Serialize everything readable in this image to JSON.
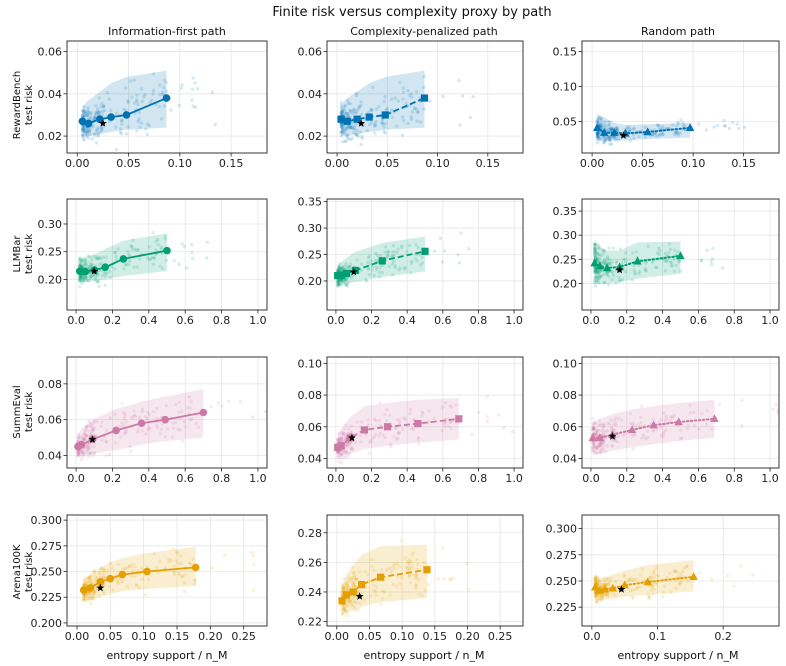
{
  "figure": {
    "title": "Finite risk versus complexity proxy by path",
    "column_titles": [
      "Information-first path",
      "Complexity-penalized path",
      "Random path"
    ],
    "row_labels": [
      [
        "RewardBench",
        "test risk"
      ],
      [
        "LLMBar",
        "test risk"
      ],
      [
        "SummEval",
        "test risk"
      ],
      [
        "Arena100K",
        "test risk"
      ]
    ],
    "xlabel": "entropy support / n_M"
  },
  "colors": {
    "RewardBench": "#0072b2",
    "LLMBar": "#009e73",
    "SummEval": "#cc79a7",
    "Arena100K": "#e69f00"
  },
  "chart_data": [
    {
      "type": "line",
      "dataset": "RewardBench",
      "path": "Information-first path",
      "marker": "circle",
      "linestyle": "solid",
      "xlim": [
        -0.01,
        0.185
      ],
      "ylim": [
        0.012,
        0.065
      ],
      "xticks": [
        0,
        0.05,
        0.1,
        0.15
      ],
      "xticklabels": [
        "0.00",
        "0.05",
        "0.10",
        "0.15"
      ],
      "yticks": [
        0.02,
        0.04,
        0.06
      ],
      "yticklabels": [
        "0.02",
        "0.04",
        "0.06"
      ],
      "x": [
        0.005,
        0.011,
        0.022,
        0.033,
        0.048,
        0.087
      ],
      "y": [
        0.027,
        0.026,
        0.028,
        0.029,
        0.03,
        0.038
      ],
      "band_lower": [
        0.02,
        0.02,
        0.021,
        0.022,
        0.023,
        0.024
      ],
      "band_upper": [
        0.034,
        0.037,
        0.041,
        0.045,
        0.048,
        0.051
      ],
      "star": [
        0.025,
        0.026
      ]
    },
    {
      "type": "line",
      "dataset": "RewardBench",
      "path": "Complexity-penalized path",
      "marker": "square",
      "linestyle": "dashed",
      "xlim": [
        -0.01,
        0.185
      ],
      "ylim": [
        0.012,
        0.065
      ],
      "xticks": [
        0,
        0.05,
        0.1,
        0.15
      ],
      "xticklabels": [
        "0.00",
        "0.05",
        "0.10",
        "0.15"
      ],
      "yticks": [
        0.02,
        0.04,
        0.06
      ],
      "yticklabels": [
        "0.02",
        "0.04",
        "0.06"
      ],
      "x": [
        0.004,
        0.01,
        0.02,
        0.032,
        0.048,
        0.087
      ],
      "y": [
        0.028,
        0.027,
        0.028,
        0.029,
        0.03,
        0.038
      ],
      "band_lower": [
        0.02,
        0.02,
        0.021,
        0.022,
        0.023,
        0.024
      ],
      "band_upper": [
        0.035,
        0.038,
        0.041,
        0.045,
        0.048,
        0.051
      ],
      "star": [
        0.024,
        0.026
      ]
    },
    {
      "type": "line",
      "dataset": "RewardBench",
      "path": "Random path",
      "marker": "triangle",
      "linestyle": "dotted",
      "xlim": [
        -0.01,
        0.185
      ],
      "ylim": [
        0.005,
        0.165
      ],
      "xticks": [
        0,
        0.05,
        0.1,
        0.15
      ],
      "xticklabels": [
        "0.00",
        "0.05",
        "0.10",
        "0.15"
      ],
      "yticks": [
        0.05,
        0.1,
        0.15
      ],
      "yticklabels": [
        "0.05",
        "0.10",
        "0.15"
      ],
      "x": [
        0.005,
        0.012,
        0.022,
        0.033,
        0.055,
        0.097
      ],
      "y": [
        0.041,
        0.034,
        0.034,
        0.033,
        0.035,
        0.041
      ],
      "band_lower": [
        0.022,
        0.022,
        0.023,
        0.023,
        0.025,
        0.027
      ],
      "band_upper": [
        0.06,
        0.056,
        0.048,
        0.045,
        0.046,
        0.048
      ],
      "star": [
        0.031,
        0.03
      ]
    },
    {
      "type": "line",
      "dataset": "LLMBar",
      "path": "Information-first path",
      "marker": "circle",
      "linestyle": "solid",
      "xlim": [
        -0.05,
        1.05
      ],
      "ylim": [
        0.145,
        0.345
      ],
      "xticks": [
        0,
        0.2,
        0.4,
        0.6,
        0.8,
        1
      ],
      "xticklabels": [
        "0.0",
        "0.2",
        "0.4",
        "0.6",
        "0.8",
        "1.0"
      ],
      "yticks": [
        0.2,
        0.25,
        0.3
      ],
      "yticklabels": [
        "0.20",
        "0.25",
        "0.30"
      ],
      "x": [
        0.02,
        0.05,
        0.1,
        0.16,
        0.26,
        0.5
      ],
      "y": [
        0.215,
        0.214,
        0.217,
        0.222,
        0.237,
        0.252
      ],
      "band_lower": [
        0.195,
        0.195,
        0.197,
        0.2,
        0.206,
        0.215
      ],
      "band_upper": [
        0.238,
        0.241,
        0.245,
        0.255,
        0.27,
        0.283
      ],
      "star": [
        0.1,
        0.215
      ]
    },
    {
      "type": "line",
      "dataset": "LLMBar",
      "path": "Complexity-penalized path",
      "marker": "square",
      "linestyle": "dashed",
      "xlim": [
        -0.05,
        1.05
      ],
      "ylim": [
        0.145,
        0.355
      ],
      "xticks": [
        0,
        0.2,
        0.4,
        0.6,
        0.8,
        1
      ],
      "xticklabels": [
        "0.0",
        "0.2",
        "0.4",
        "0.6",
        "0.8",
        "1.0"
      ],
      "yticks": [
        0.2,
        0.25,
        0.3,
        0.35
      ],
      "yticklabels": [
        "0.20",
        "0.25",
        "0.30",
        "0.35"
      ],
      "x": [
        0.01,
        0.03,
        0.06,
        0.11,
        0.26,
        0.5
      ],
      "y": [
        0.21,
        0.21,
        0.214,
        0.22,
        0.238,
        0.256
      ],
      "band_lower": [
        0.193,
        0.193,
        0.195,
        0.198,
        0.207,
        0.218
      ],
      "band_upper": [
        0.23,
        0.236,
        0.244,
        0.255,
        0.272,
        0.284
      ],
      "star": [
        0.1,
        0.217
      ]
    },
    {
      "type": "line",
      "dataset": "LLMBar",
      "path": "Random path",
      "marker": "triangle",
      "linestyle": "dotted",
      "xlim": [
        -0.05,
        1.05
      ],
      "ylim": [
        0.145,
        0.375
      ],
      "xticks": [
        0,
        0.2,
        0.4,
        0.6,
        0.8,
        1
      ],
      "xticklabels": [
        "0.0",
        "0.2",
        "0.4",
        "0.6",
        "0.8",
        "1.0"
      ],
      "yticks": [
        0.2,
        0.25,
        0.3,
        0.35
      ],
      "yticklabels": [
        "0.20",
        "0.25",
        "0.30",
        "0.35"
      ],
      "x": [
        0.02,
        0.05,
        0.09,
        0.16,
        0.26,
        0.5
      ],
      "y": [
        0.242,
        0.236,
        0.232,
        0.234,
        0.246,
        0.257
      ],
      "band_lower": [
        0.2,
        0.199,
        0.2,
        0.203,
        0.21,
        0.22
      ],
      "band_upper": [
        0.292,
        0.275,
        0.268,
        0.268,
        0.285,
        0.287
      ],
      "star": [
        0.16,
        0.228
      ]
    },
    {
      "type": "line",
      "dataset": "SummEval",
      "path": "Information-first path",
      "marker": "circle",
      "linestyle": "solid",
      "xlim": [
        -0.05,
        1.05
      ],
      "ylim": [
        0.033,
        0.095
      ],
      "xticks": [
        0,
        0.2,
        0.4,
        0.6,
        0.8,
        1
      ],
      "xticklabels": [
        "0.0",
        "0.2",
        "0.4",
        "0.6",
        "0.8",
        "1.0"
      ],
      "yticks": [
        0.04,
        0.06,
        0.08
      ],
      "yticklabels": [
        "0.04",
        "0.06",
        "0.08"
      ],
      "x": [
        0.01,
        0.03,
        0.09,
        0.22,
        0.36,
        0.49,
        0.7
      ],
      "y": [
        0.045,
        0.046,
        0.049,
        0.054,
        0.058,
        0.06,
        0.064
      ],
      "band_lower": [
        0.04,
        0.04,
        0.041,
        0.043,
        0.046,
        0.048,
        0.05
      ],
      "band_upper": [
        0.052,
        0.055,
        0.06,
        0.066,
        0.07,
        0.073,
        0.077
      ],
      "star": [
        0.09,
        0.049
      ]
    },
    {
      "type": "line",
      "dataset": "SummEval",
      "path": "Complexity-penalized path",
      "marker": "square",
      "linestyle": "dashed",
      "xlim": [
        -0.05,
        1.05
      ],
      "ylim": [
        0.034,
        0.104
      ],
      "xticks": [
        0,
        0.2,
        0.4,
        0.6,
        0.8,
        1
      ],
      "xticklabels": [
        "0.0",
        "0.2",
        "0.4",
        "0.6",
        "0.8",
        "1.0"
      ],
      "yticks": [
        0.04,
        0.06,
        0.08,
        0.1
      ],
      "yticklabels": [
        "0.04",
        "0.06",
        "0.08",
        "0.10"
      ],
      "x": [
        0.01,
        0.03,
        0.08,
        0.16,
        0.29,
        0.46,
        0.69
      ],
      "y": [
        0.047,
        0.048,
        0.053,
        0.058,
        0.06,
        0.062,
        0.065
      ],
      "band_lower": [
        0.041,
        0.041,
        0.043,
        0.046,
        0.048,
        0.05,
        0.052
      ],
      "band_upper": [
        0.055,
        0.059,
        0.066,
        0.073,
        0.075,
        0.077,
        0.078
      ],
      "star": [
        0.09,
        0.053
      ]
    },
    {
      "type": "line",
      "dataset": "SummEval",
      "path": "Random path",
      "marker": "triangle",
      "linestyle": "dotted",
      "xlim": [
        -0.05,
        1.05
      ],
      "ylim": [
        0.034,
        0.104
      ],
      "xticks": [
        0,
        0.2,
        0.4,
        0.6,
        0.8,
        1
      ],
      "xticklabels": [
        "0.0",
        "0.2",
        "0.4",
        "0.6",
        "0.8",
        "1.0"
      ],
      "yticks": [
        0.04,
        0.06,
        0.08,
        0.1
      ],
      "yticklabels": [
        "0.04",
        "0.06",
        "0.08",
        "0.10"
      ],
      "x": [
        0.01,
        0.05,
        0.12,
        0.23,
        0.35,
        0.49,
        0.69
      ],
      "y": [
        0.053,
        0.053,
        0.055,
        0.058,
        0.061,
        0.063,
        0.065
      ],
      "band_lower": [
        0.042,
        0.043,
        0.045,
        0.047,
        0.049,
        0.051,
        0.053
      ],
      "band_upper": [
        0.062,
        0.065,
        0.068,
        0.071,
        0.073,
        0.075,
        0.077
      ],
      "star": [
        0.12,
        0.054
      ]
    },
    {
      "type": "line",
      "dataset": "Arena100K",
      "path": "Information-first path",
      "marker": "circle",
      "linestyle": "solid",
      "xlim": [
        -0.015,
        0.285
      ],
      "ylim": [
        0.197,
        0.305
      ],
      "xticks": [
        0,
        0.05,
        0.1,
        0.15,
        0.2,
        0.25
      ],
      "xticklabels": [
        "0.00",
        "0.05",
        "0.10",
        "0.15",
        "0.20",
        "0.25"
      ],
      "yticks": [
        0.2,
        0.225,
        0.25,
        0.275,
        0.3
      ],
      "yticklabels": [
        "0.200",
        "0.225",
        "0.250",
        "0.275",
        "0.300"
      ],
      "x": [
        0.01,
        0.02,
        0.035,
        0.05,
        0.068,
        0.105,
        0.178
      ],
      "y": [
        0.232,
        0.234,
        0.24,
        0.243,
        0.247,
        0.25,
        0.254
      ],
      "band_lower": [
        0.222,
        0.222,
        0.226,
        0.228,
        0.231,
        0.233,
        0.236
      ],
      "band_upper": [
        0.243,
        0.247,
        0.254,
        0.259,
        0.263,
        0.268,
        0.274
      ],
      "star": [
        0.035,
        0.234
      ]
    },
    {
      "type": "line",
      "dataset": "Arena100K",
      "path": "Complexity-penalized path",
      "marker": "square",
      "linestyle": "dashed",
      "xlim": [
        -0.015,
        0.285
      ],
      "ylim": [
        0.217,
        0.292
      ],
      "xticks": [
        0,
        0.05,
        0.1,
        0.15,
        0.2,
        0.25
      ],
      "xticklabels": [
        "0.00",
        "0.05",
        "0.10",
        "0.15",
        "0.20",
        "0.25"
      ],
      "yticks": [
        0.22,
        0.24,
        0.26,
        0.28
      ],
      "yticklabels": [
        "0.22",
        "0.24",
        "0.26",
        "0.28"
      ],
      "x": [
        0.008,
        0.015,
        0.025,
        0.038,
        0.067,
        0.138
      ],
      "y": [
        0.234,
        0.238,
        0.24,
        0.245,
        0.25,
        0.255
      ],
      "band_lower": [
        0.224,
        0.226,
        0.228,
        0.23,
        0.233,
        0.236
      ],
      "band_upper": [
        0.244,
        0.252,
        0.258,
        0.265,
        0.271,
        0.272
      ],
      "star": [
        0.035,
        0.237
      ]
    },
    {
      "type": "line",
      "dataset": "Arena100K",
      "path": "Random path",
      "marker": "triangle",
      "linestyle": "dotted",
      "xlim": [
        -0.015,
        0.285
      ],
      "ylim": [
        0.207,
        0.313
      ],
      "xticks": [
        0,
        0.1,
        0.2
      ],
      "xticklabels": [
        "0.0",
        "0.1",
        "0.2"
      ],
      "yticks": [
        0.225,
        0.25,
        0.275,
        0.3
      ],
      "yticklabels": [
        "0.225",
        "0.250",
        "0.275",
        "0.300"
      ],
      "x": [
        0.005,
        0.012,
        0.02,
        0.032,
        0.05,
        0.085,
        0.155
      ],
      "y": [
        0.244,
        0.241,
        0.242,
        0.243,
        0.246,
        0.249,
        0.254
      ],
      "band_lower": [
        0.232,
        0.231,
        0.232,
        0.233,
        0.235,
        0.237,
        0.24
      ],
      "band_upper": [
        0.257,
        0.253,
        0.254,
        0.256,
        0.26,
        0.265,
        0.27
      ],
      "star": [
        0.045,
        0.242
      ]
    }
  ]
}
